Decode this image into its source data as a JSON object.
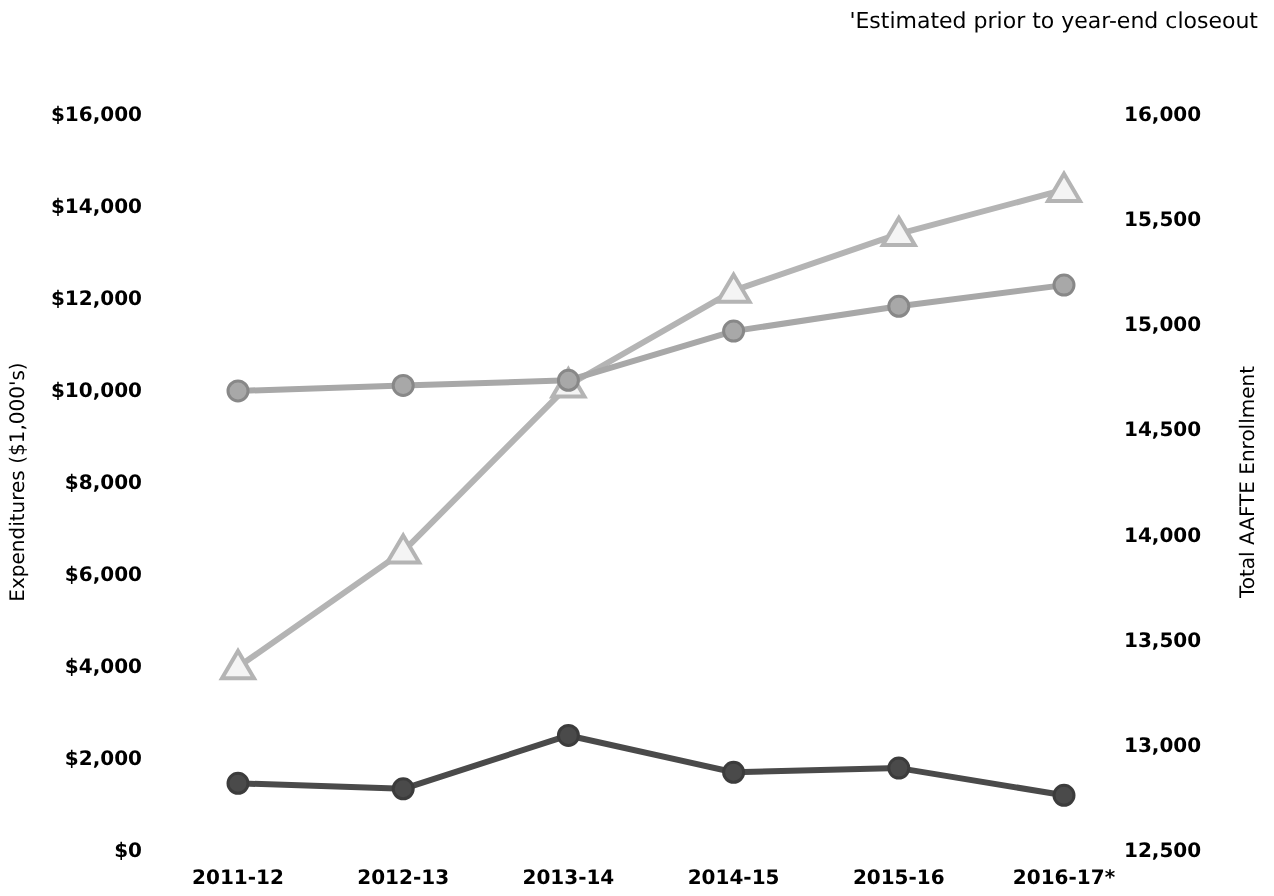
{
  "chart_data": {
    "type": "line",
    "ylabel": "Expenditures ($1,000's)",
    "y2label": "Total AAFTE Enrollment",
    "annotations": [
      "'Estimated prior to year-end closeout"
    ],
    "categories": [
      "2011-12",
      "2012-13",
      "2013-14",
      "2014-15",
      "2015-16",
      "2016-17*"
    ],
    "ylim": [
      0,
      16000
    ],
    "yticks": [
      {
        "value": 0,
        "label": "$0"
      },
      {
        "value": 2000,
        "label": "$2,000"
      },
      {
        "value": 4000,
        "label": "$4,000"
      },
      {
        "value": 6000,
        "label": "$6,000"
      },
      {
        "value": 8000,
        "label": "$8,000"
      },
      {
        "value": 10000,
        "label": "$10,000"
      },
      {
        "value": 12000,
        "label": "$12,000"
      },
      {
        "value": 14000,
        "label": "$14,000"
      },
      {
        "value": 16000,
        "label": "$16,000"
      }
    ],
    "y2lim": [
      12500,
      16000
    ],
    "y2ticks": [
      {
        "value": 12500,
        "label": "12,500"
      },
      {
        "value": 13000,
        "label": "13,000"
      },
      {
        "value": 13500,
        "label": "13,500"
      },
      {
        "value": 14000,
        "label": "14,000"
      },
      {
        "value": 14500,
        "label": "14,500"
      },
      {
        "value": 15000,
        "label": "15,000"
      },
      {
        "value": 15500,
        "label": "15,500"
      },
      {
        "value": 16000,
        "label": "16,000"
      }
    ],
    "grid": false,
    "series": [
      {
        "color": "#b4b4b4",
        "marker": "triangle",
        "axis": "y2",
        "values": [
          13370,
          13920,
          14710,
          15160,
          15430,
          15640
        ]
      },
      {
        "color": "#a8a8a8",
        "marker": "circle",
        "values": [
          9980,
          10100,
          10210,
          11280,
          11820,
          12280
        ]
      },
      {
        "color": "#4a4a4a",
        "marker": "circle",
        "values": [
          1450,
          1330,
          2490,
          1690,
          1780,
          1190
        ]
      }
    ]
  }
}
